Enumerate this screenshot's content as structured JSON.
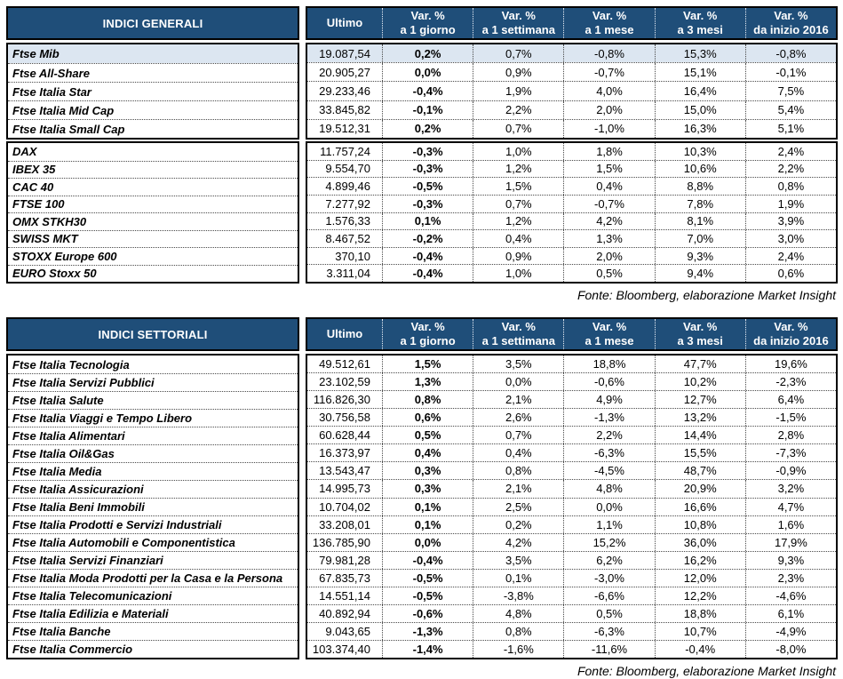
{
  "colors": {
    "header_bg": "#1F4E79",
    "header_text": "#FFFFFF",
    "highlight_row_bg": "#DCE6F1",
    "border": "#000000"
  },
  "columns": {
    "ultimo": "Ultimo",
    "var_cols": [
      [
        "Var. %",
        "a 1 giorno"
      ],
      [
        "Var. %",
        "a 1 settimana"
      ],
      [
        "Var. %",
        "a 1 mese"
      ],
      [
        "Var. %",
        "a 3 mesi"
      ],
      [
        "Var. %",
        "da inizio 2016"
      ]
    ]
  },
  "fonte": "Fonte: Bloomberg, elaborazione Market Insight",
  "tables": [
    {
      "title": "INDICI GENERALI",
      "groups": [
        {
          "rows": [
            {
              "name": "Ftse Mib",
              "ultimo": "19.087,54",
              "vals": [
                "0,2%",
                "0,7%",
                "-0,8%",
                "15,3%",
                "-0,8%"
              ],
              "highlight": true
            },
            {
              "name": "Ftse All-Share",
              "ultimo": "20.905,27",
              "vals": [
                "0,0%",
                "0,9%",
                "-0,7%",
                "15,1%",
                "-0,1%"
              ]
            },
            {
              "name": "Ftse Italia Star",
              "ultimo": "29.233,46",
              "vals": [
                "-0,4%",
                "1,9%",
                "4,0%",
                "16,4%",
                "7,5%"
              ]
            },
            {
              "name": "Ftse Italia Mid Cap",
              "ultimo": "33.845,82",
              "vals": [
                "-0,1%",
                "2,2%",
                "2,0%",
                "15,0%",
                "5,4%"
              ]
            },
            {
              "name": "Ftse Italia Small Cap",
              "ultimo": "19.512,31",
              "vals": [
                "0,2%",
                "0,7%",
                "-1,0%",
                "16,3%",
                "5,1%"
              ]
            }
          ]
        },
        {
          "rows": [
            {
              "name": "DAX",
              "ultimo": "11.757,24",
              "vals": [
                "-0,3%",
                "1,0%",
                "1,8%",
                "10,3%",
                "2,4%"
              ]
            },
            {
              "name": "IBEX 35",
              "ultimo": "9.554,70",
              "vals": [
                "-0,3%",
                "1,2%",
                "1,5%",
                "10,6%",
                "2,2%"
              ]
            },
            {
              "name": "CAC 40",
              "ultimo": "4.899,46",
              "vals": [
                "-0,5%",
                "1,5%",
                "0,4%",
                "8,8%",
                "0,8%"
              ]
            },
            {
              "name": "FTSE 100",
              "ultimo": "7.277,92",
              "vals": [
                "-0,3%",
                "0,7%",
                "-0,7%",
                "7,8%",
                "1,9%"
              ]
            },
            {
              "name": "OMX STKH30",
              "ultimo": "1.576,33",
              "vals": [
                "0,1%",
                "1,2%",
                "4,2%",
                "8,1%",
                "3,9%"
              ]
            },
            {
              "name": "SWISS MKT",
              "ultimo": "8.467,52",
              "vals": [
                "-0,2%",
                "0,4%",
                "1,3%",
                "7,0%",
                "3,0%"
              ]
            },
            {
              "name": "STOXX Europe 600",
              "ultimo": "370,10",
              "vals": [
                "-0,4%",
                "0,9%",
                "2,0%",
                "9,3%",
                "2,4%"
              ]
            },
            {
              "name": "EURO Stoxx 50",
              "ultimo": "3.311,04",
              "vals": [
                "-0,4%",
                "1,0%",
                "0,5%",
                "9,4%",
                "0,6%"
              ]
            }
          ]
        }
      ]
    },
    {
      "title": "INDICI SETTORIALI",
      "groups": [
        {
          "rows": [
            {
              "name": "Ftse Italia Tecnologia",
              "ultimo": "49.512,61",
              "vals": [
                "1,5%",
                "3,5%",
                "18,8%",
                "47,7%",
                "19,6%"
              ]
            },
            {
              "name": "Ftse Italia Servizi Pubblici",
              "ultimo": "23.102,59",
              "vals": [
                "1,3%",
                "0,0%",
                "-0,6%",
                "10,2%",
                "-2,3%"
              ]
            },
            {
              "name": "Ftse Italia Salute",
              "ultimo": "116.826,30",
              "vals": [
                "0,8%",
                "2,1%",
                "4,9%",
                "12,7%",
                "6,4%"
              ]
            },
            {
              "name": "Ftse Italia Viaggi e Tempo Libero",
              "ultimo": "30.756,58",
              "vals": [
                "0,6%",
                "2,6%",
                "-1,3%",
                "13,2%",
                "-1,5%"
              ]
            },
            {
              "name": "Ftse Italia Alimentari",
              "ultimo": "60.628,44",
              "vals": [
                "0,5%",
                "0,7%",
                "2,2%",
                "14,4%",
                "2,8%"
              ]
            },
            {
              "name": "Ftse Italia Oil&Gas",
              "ultimo": "16.373,97",
              "vals": [
                "0,4%",
                "0,4%",
                "-6,3%",
                "15,5%",
                "-7,3%"
              ]
            },
            {
              "name": "Ftse Italia Media",
              "ultimo": "13.543,47",
              "vals": [
                "0,3%",
                "0,8%",
                "-4,5%",
                "48,7%",
                "-0,9%"
              ]
            },
            {
              "name": "Ftse Italia Assicurazioni",
              "ultimo": "14.995,73",
              "vals": [
                "0,3%",
                "2,1%",
                "4,8%",
                "20,9%",
                "3,2%"
              ]
            },
            {
              "name": "Ftse Italia Beni Immobili",
              "ultimo": "10.704,02",
              "vals": [
                "0,1%",
                "2,5%",
                "0,0%",
                "16,6%",
                "4,7%"
              ]
            },
            {
              "name": "Ftse Italia Prodotti e Servizi Industriali",
              "ultimo": "33.208,01",
              "vals": [
                "0,1%",
                "0,2%",
                "1,1%",
                "10,8%",
                "1,6%"
              ]
            },
            {
              "name": "Ftse Italia Automobili e Componentistica",
              "ultimo": "136.785,90",
              "vals": [
                "0,0%",
                "4,2%",
                "15,2%",
                "36,0%",
                "17,9%"
              ]
            },
            {
              "name": "Ftse Italia Servizi Finanziari",
              "ultimo": "79.981,28",
              "vals": [
                "-0,4%",
                "3,5%",
                "6,2%",
                "16,2%",
                "9,3%"
              ]
            },
            {
              "name": "Ftse Italia Moda Prodotti per la Casa e la Persona",
              "ultimo": "67.835,73",
              "vals": [
                "-0,5%",
                "0,1%",
                "-3,0%",
                "12,0%",
                "2,3%"
              ]
            },
            {
              "name": "Ftse Italia Telecomunicazioni",
              "ultimo": "14.551,14",
              "vals": [
                "-0,5%",
                "-3,8%",
                "-6,6%",
                "12,2%",
                "-4,6%"
              ]
            },
            {
              "name": "Ftse Italia Edilizia e Materiali",
              "ultimo": "40.892,94",
              "vals": [
                "-0,6%",
                "4,8%",
                "0,5%",
                "18,8%",
                "6,1%"
              ]
            },
            {
              "name": "Ftse Italia Banche",
              "ultimo": "9.043,65",
              "vals": [
                "-1,3%",
                "0,8%",
                "-6,3%",
                "10,7%",
                "-4,9%"
              ]
            },
            {
              "name": "Ftse Italia Commercio",
              "ultimo": "103.374,40",
              "vals": [
                "-1,4%",
                "-1,6%",
                "-11,6%",
                "-0,4%",
                "-8,0%"
              ]
            }
          ]
        }
      ]
    }
  ]
}
